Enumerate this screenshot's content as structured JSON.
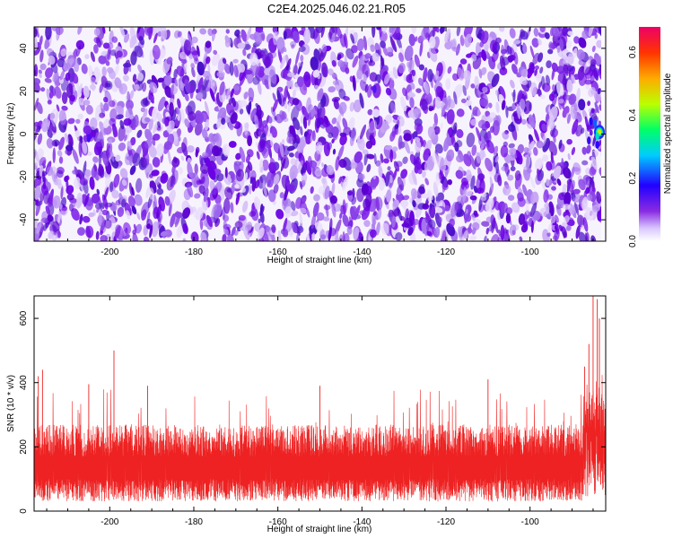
{
  "title": "C2E4.2025.046.02.21.R05",
  "chart_data": [
    {
      "type": "heatmap",
      "name": "spectrogram",
      "xlabel": "Height of straight line (km)",
      "ylabel": "Frequency (Hz)",
      "xlim": [
        -218,
        -82
      ],
      "ylim": [
        -50,
        50
      ],
      "x_ticks": [
        -200,
        -180,
        -160,
        -140,
        -120,
        -100
      ],
      "y_ticks": [
        -40,
        -20,
        0,
        20,
        40
      ],
      "colorbar": {
        "label": "Normalized spectral amplitude",
        "range": [
          0,
          0.68
        ],
        "ticks": [
          "0.0",
          "0.2",
          "0.4",
          "0.6"
        ]
      },
      "background_pattern": "dense random purple blobs (amplitude ~0.05-0.15) over full range",
      "hotspots": [
        {
          "x": -83.5,
          "y": 1,
          "value": 0.45
        },
        {
          "x": -84,
          "y": -1,
          "value": 0.3
        },
        {
          "x": -84.5,
          "y": 5,
          "value": 0.22
        },
        {
          "x": -85.5,
          "y": 6,
          "value": 0.18
        },
        {
          "x": -86,
          "y": -3,
          "value": 0.16
        },
        {
          "x": -84,
          "y": -5,
          "value": 0.17
        },
        {
          "x": -205,
          "y": -2,
          "value": 0.15
        },
        {
          "x": -137,
          "y": 21,
          "value": 0.14
        }
      ],
      "colors": {
        "low": "#f2ecfc",
        "mid": "#6a00e6",
        "high": "#e6004d"
      }
    },
    {
      "type": "line",
      "name": "snr",
      "xlabel": "Height of straight line (km)",
      "ylabel": "SNR (10 * v/v)",
      "xlim": [
        -218,
        -82
      ],
      "ylim": [
        0,
        670
      ],
      "x_ticks": [
        -200,
        -180,
        -160,
        -140,
        -120,
        -100
      ],
      "y_ticks": [
        0,
        200,
        400,
        600
      ],
      "series_color": "#ee2222",
      "typical_range": [
        60,
        250
      ],
      "peaks": [
        {
          "x": -217,
          "y": 420
        },
        {
          "x": -216,
          "y": 440
        },
        {
          "x": -199,
          "y": 500
        },
        {
          "x": -205,
          "y": 395
        },
        {
          "x": -191,
          "y": 390
        },
        {
          "x": -150,
          "y": 390
        },
        {
          "x": -110,
          "y": 410
        },
        {
          "x": -87,
          "y": 450
        },
        {
          "x": -85,
          "y": 670
        },
        {
          "x": -84,
          "y": 660
        },
        {
          "x": -83.5,
          "y": 600
        },
        {
          "x": -86,
          "y": 520
        }
      ]
    }
  ]
}
